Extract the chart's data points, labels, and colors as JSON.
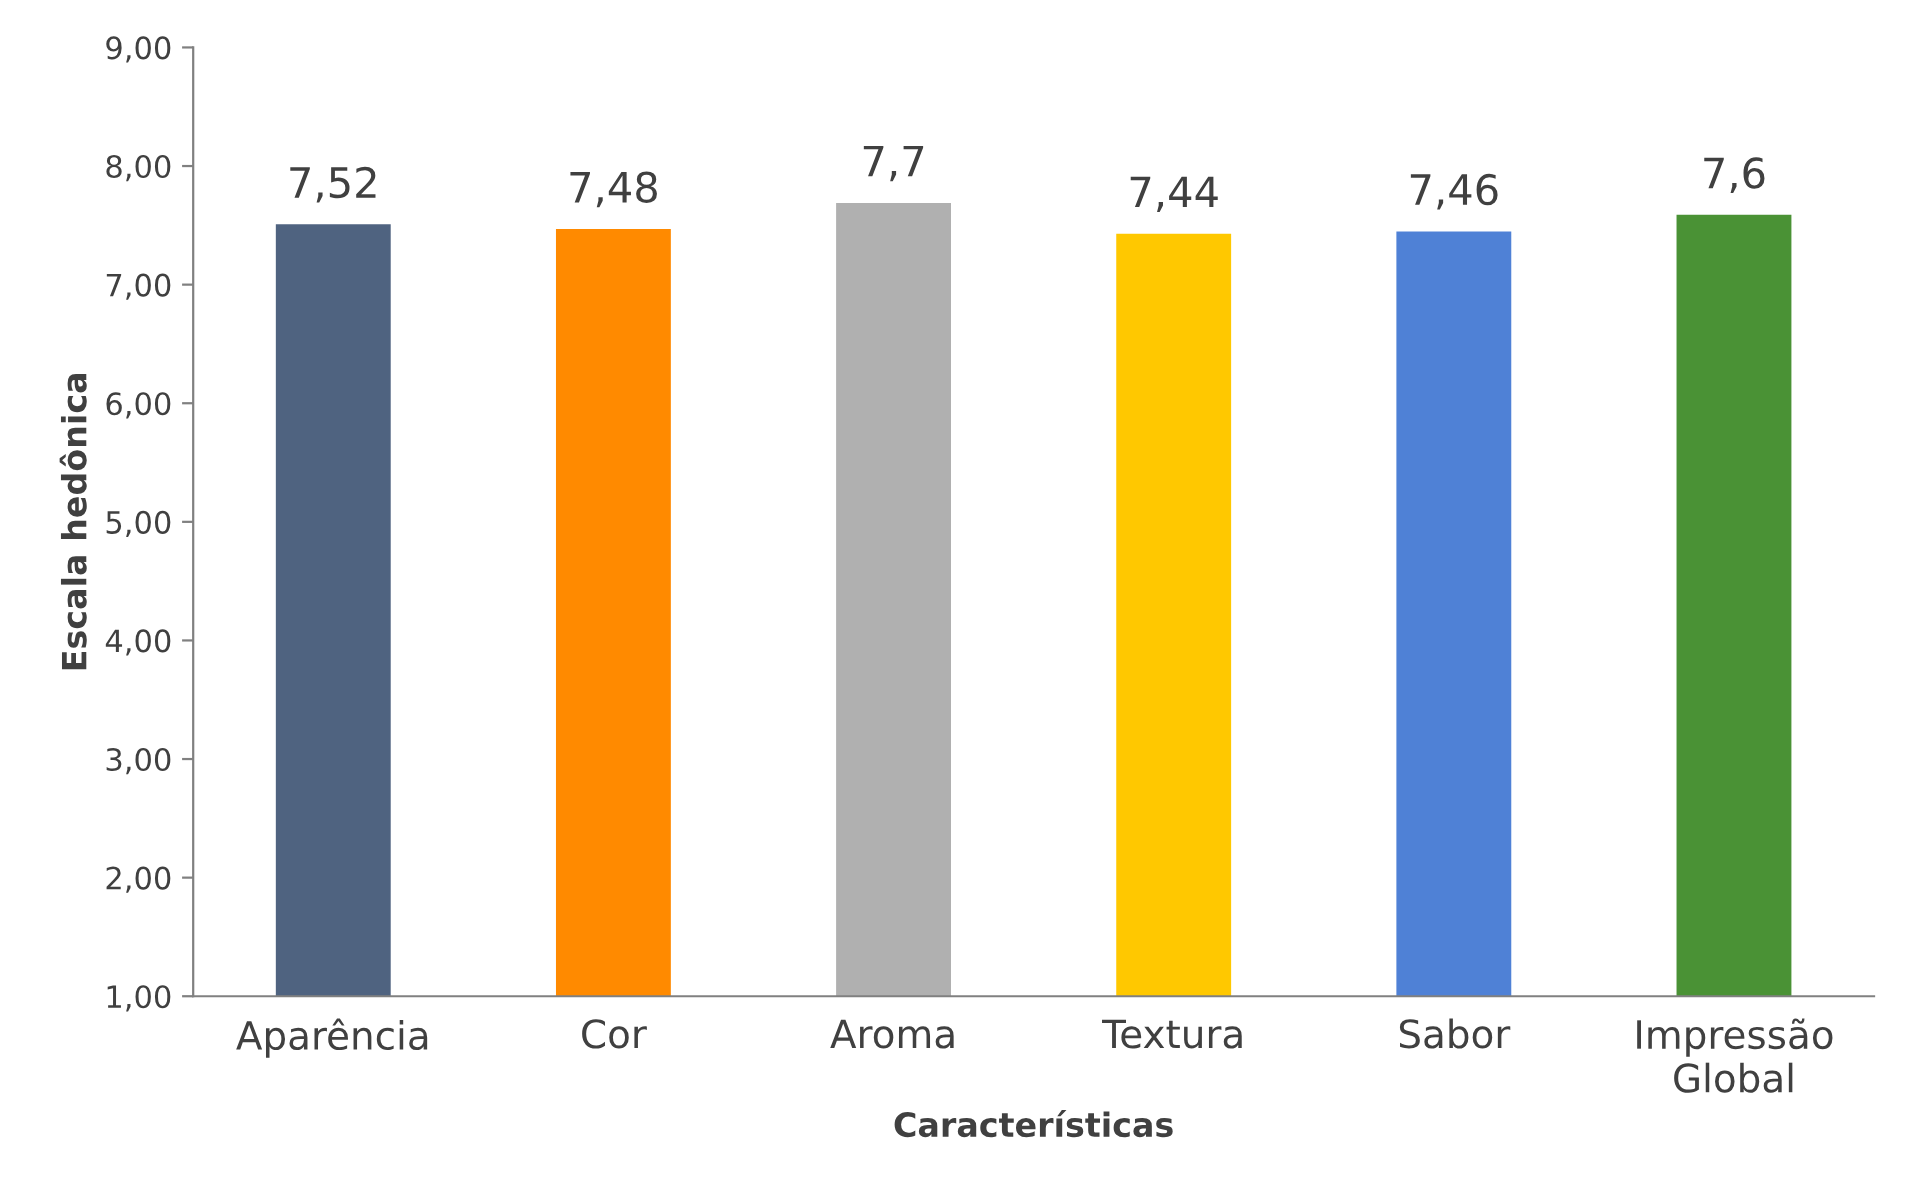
{
  "chart_data": {
    "type": "bar",
    "xlabel": "Características",
    "ylabel": "Escala hedônica",
    "categories": [
      "Aparência",
      "Cor",
      "Aroma",
      "Textura",
      "Sabor",
      "Impressão Global"
    ],
    "values": [
      7.52,
      7.48,
      7.7,
      7.44,
      7.46,
      7.6
    ],
    "value_labels": [
      "7,52",
      "7,48",
      "7,7",
      "7,44",
      "7,46",
      "7,6"
    ],
    "colors": [
      "#4f6380",
      "#ff8a00",
      "#b0b0b0",
      "#ffc800",
      "#4f81d6",
      "#4a9235"
    ],
    "ylim": [
      1,
      9
    ],
    "yticks": [
      {
        "value": 1,
        "label": "1,00"
      },
      {
        "value": 2,
        "label": "2,00"
      },
      {
        "value": 3,
        "label": "3,00"
      },
      {
        "value": 4,
        "label": "4,00"
      },
      {
        "value": 5,
        "label": "5,00"
      },
      {
        "value": 6,
        "label": "6,00"
      },
      {
        "value": 7,
        "label": "7,00"
      },
      {
        "value": 8,
        "label": "8,00"
      },
      {
        "value": 9,
        "label": "9,00"
      }
    ],
    "grid": false,
    "legend": false
  }
}
